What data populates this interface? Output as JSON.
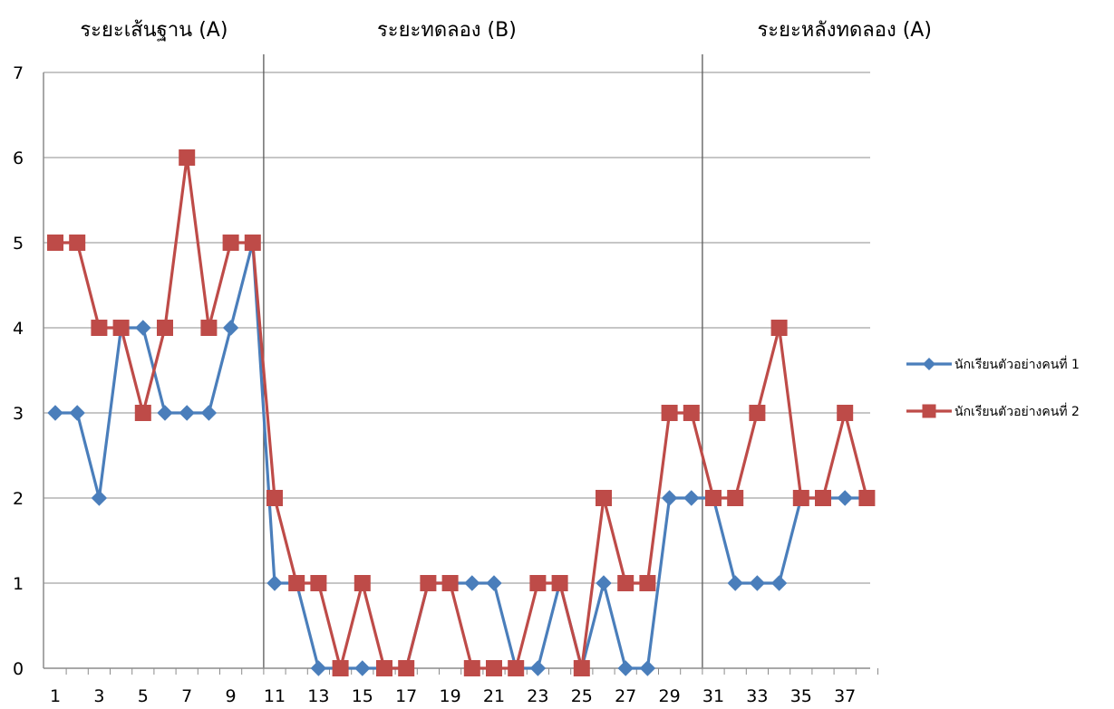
{
  "chart_data": {
    "type": "line",
    "title": "",
    "xlabel": "",
    "ylabel": "",
    "x": [
      1,
      2,
      3,
      4,
      5,
      6,
      7,
      8,
      9,
      10,
      11,
      12,
      13,
      14,
      15,
      16,
      17,
      18,
      19,
      20,
      21,
      22,
      23,
      24,
      25,
      26,
      27,
      28,
      29,
      30,
      31,
      32,
      33,
      34,
      35,
      36,
      37,
      38
    ],
    "x_tick_labels": [
      "1",
      "3",
      "5",
      "7",
      "9",
      "11",
      "13",
      "15",
      "17",
      "19",
      "21",
      "23",
      "25",
      "27",
      "29",
      "31",
      "33",
      "35",
      "37"
    ],
    "ylim": [
      0,
      7
    ],
    "y_ticks": [
      "0",
      "1",
      "2",
      "3",
      "4",
      "5",
      "6",
      "7"
    ],
    "grid": true,
    "legend_position": "right",
    "phases": [
      {
        "label": "ระยะเส้นฐาน (A)",
        "start": 1,
        "end": 10
      },
      {
        "label": "ระยะทดลอง (B)",
        "start": 11,
        "end": 30
      },
      {
        "label": "ระยะหลังทดลอง (A)",
        "start": 31,
        "end": 38
      }
    ],
    "series": [
      {
        "name": "นักเรียนตัวอย่างคนที่ 1",
        "marker": "diamond",
        "color": "#4a7ebb",
        "values": [
          3,
          3,
          2,
          4,
          4,
          3,
          3,
          3,
          4,
          5,
          1,
          1,
          0,
          0,
          0,
          0,
          0,
          1,
          1,
          1,
          1,
          0,
          0,
          1,
          0,
          1,
          0,
          0,
          2,
          2,
          2,
          1,
          1,
          1,
          2,
          2,
          2,
          2
        ]
      },
      {
        "name": "นักเรียนตัวอย่างคนที่ 2",
        "marker": "square",
        "color": "#be4b48",
        "values": [
          5,
          5,
          4,
          4,
          3,
          4,
          6,
          4,
          5,
          5,
          2,
          1,
          1,
          0,
          1,
          0,
          0,
          1,
          1,
          0,
          0,
          0,
          1,
          1,
          0,
          2,
          1,
          1,
          3,
          3,
          2,
          2,
          3,
          4,
          2,
          2,
          3,
          2
        ]
      }
    ]
  }
}
